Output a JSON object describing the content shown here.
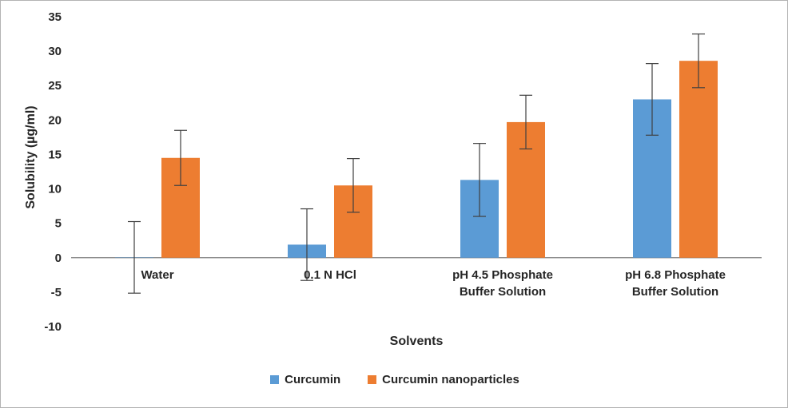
{
  "chart_data": {
    "type": "bar",
    "title": "",
    "xlabel": "Solvents",
    "ylabel": "Solubility (µg/ml)",
    "ylim": [
      -10,
      35
    ],
    "ytick_step": 5,
    "grid": false,
    "legend_position": "bottom",
    "error_bar_color": "#404040",
    "axis_color": "#7f7f7f",
    "categories": [
      "Water",
      "0.1 N HCl",
      "pH 4.5 Phosphate\nBuffer Solution",
      "pH 6.8 Phosphate\nBuffer Solution"
    ],
    "series": [
      {
        "name": "Curcumin",
        "color": "#5B9BD5",
        "values": [
          0.05,
          1.9,
          11.3,
          23.0
        ],
        "errors": [
          5.2,
          5.2,
          5.3,
          5.2
        ]
      },
      {
        "name": "Curcumin nanoparticles",
        "color": "#ED7D31",
        "values": [
          14.5,
          10.5,
          19.7,
          28.6
        ],
        "errors": [
          4.0,
          3.9,
          3.9,
          3.9
        ]
      }
    ]
  }
}
